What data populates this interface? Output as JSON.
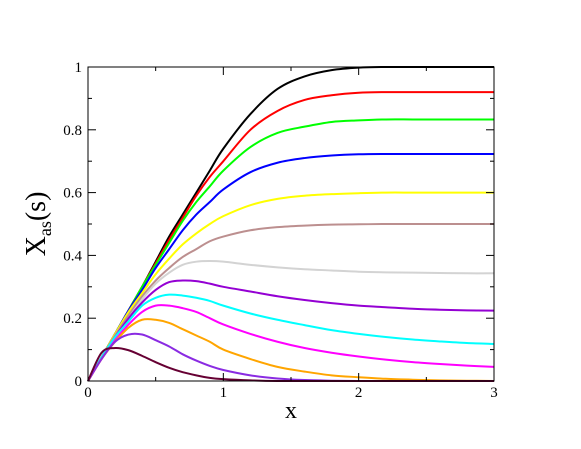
{
  "chart_data": {
    "type": "line",
    "title": "",
    "xlabel": "x",
    "ylabel_main": "X",
    "ylabel_sub": "as",
    "ylabel_tail": "(s)",
    "xlim": [
      0,
      3
    ],
    "ylim": [
      0,
      1
    ],
    "x_ticks": [
      0,
      1,
      2,
      3
    ],
    "x_tick_labels": [
      "0",
      "1",
      "2",
      "3"
    ],
    "y_ticks": [
      0,
      0.2,
      0.4,
      0.6,
      0.8,
      1
    ],
    "y_tick_labels": [
      "0",
      "0.2",
      "0.4",
      "0.6",
      "0.8",
      "1"
    ],
    "grid": false,
    "legend": "none",
    "x": [
      0,
      0.1,
      0.2,
      0.3,
      0.4,
      0.5,
      0.6,
      0.7,
      0.8,
      0.9,
      1.0,
      1.2,
      1.4,
      1.6,
      1.8,
      2.0,
      2.2,
      2.4,
      2.6,
      2.8,
      3.0
    ],
    "series": [
      {
        "color": "#000000",
        "values": [
          0,
          0.075,
          0.15,
          0.225,
          0.3,
          0.38,
          0.46,
          0.53,
          0.6,
          0.67,
          0.74,
          0.85,
          0.93,
          0.97,
          0.99,
          0.998,
          1.0,
          1.0,
          1.0,
          1.0,
          1.0
        ]
      },
      {
        "color": "#ff0000",
        "values": [
          0,
          0.075,
          0.15,
          0.225,
          0.3,
          0.375,
          0.45,
          0.52,
          0.59,
          0.65,
          0.7,
          0.8,
          0.86,
          0.895,
          0.91,
          0.918,
          0.92,
          0.92,
          0.92,
          0.92,
          0.92
        ]
      },
      {
        "color": "#00ff00",
        "values": [
          0,
          0.075,
          0.15,
          0.225,
          0.3,
          0.37,
          0.44,
          0.51,
          0.57,
          0.62,
          0.67,
          0.745,
          0.79,
          0.81,
          0.825,
          0.83,
          0.833,
          0.833,
          0.833,
          0.833,
          0.833
        ]
      },
      {
        "color": "#0000ff",
        "values": [
          0,
          0.075,
          0.15,
          0.225,
          0.29,
          0.36,
          0.42,
          0.48,
          0.53,
          0.57,
          0.61,
          0.665,
          0.695,
          0.71,
          0.718,
          0.722,
          0.723,
          0.723,
          0.723,
          0.723,
          0.723
        ]
      },
      {
        "color": "#ffff00",
        "values": [
          0,
          0.075,
          0.15,
          0.22,
          0.28,
          0.34,
          0.39,
          0.435,
          0.47,
          0.5,
          0.525,
          0.56,
          0.58,
          0.59,
          0.595,
          0.598,
          0.6,
          0.6,
          0.6,
          0.6,
          0.6
        ]
      },
      {
        "color": "#bc8f8f",
        "values": [
          0,
          0.075,
          0.145,
          0.21,
          0.27,
          0.32,
          0.36,
          0.395,
          0.42,
          0.445,
          0.46,
          0.48,
          0.49,
          0.495,
          0.498,
          0.499,
          0.5,
          0.5,
          0.5,
          0.5,
          0.5
        ]
      },
      {
        "color": "#d3d3d3",
        "values": [
          0,
          0.075,
          0.14,
          0.2,
          0.26,
          0.31,
          0.345,
          0.37,
          0.38,
          0.382,
          0.38,
          0.37,
          0.362,
          0.356,
          0.352,
          0.348,
          0.346,
          0.345,
          0.344,
          0.343,
          0.343
        ]
      },
      {
        "color": "#9400d3",
        "values": [
          0,
          0.075,
          0.14,
          0.2,
          0.25,
          0.29,
          0.315,
          0.32,
          0.318,
          0.31,
          0.3,
          0.285,
          0.27,
          0.258,
          0.248,
          0.24,
          0.235,
          0.23,
          0.227,
          0.225,
          0.224
        ]
      },
      {
        "color": "#00ffff",
        "values": [
          0,
          0.075,
          0.14,
          0.19,
          0.24,
          0.265,
          0.275,
          0.272,
          0.265,
          0.255,
          0.24,
          0.215,
          0.195,
          0.178,
          0.162,
          0.15,
          0.14,
          0.132,
          0.126,
          0.121,
          0.118
        ]
      },
      {
        "color": "#ff00ff",
        "values": [
          0,
          0.07,
          0.13,
          0.18,
          0.22,
          0.24,
          0.24,
          0.232,
          0.22,
          0.2,
          0.18,
          0.15,
          0.125,
          0.105,
          0.09,
          0.078,
          0.068,
          0.06,
          0.054,
          0.049,
          0.045
        ]
      },
      {
        "color": "#ffa500",
        "values": [
          0,
          0.07,
          0.125,
          0.17,
          0.195,
          0.195,
          0.185,
          0.165,
          0.145,
          0.125,
          0.1,
          0.07,
          0.045,
          0.03,
          0.018,
          0.012,
          0.007,
          0.004,
          0.002,
          0.001,
          0.0
        ]
      },
      {
        "color": "#8a2be2",
        "values": [
          0,
          0.07,
          0.125,
          0.148,
          0.148,
          0.13,
          0.11,
          0.085,
          0.065,
          0.048,
          0.035,
          0.018,
          0.008,
          0.003,
          0.001,
          0.0,
          0.0,
          0.0,
          0.0,
          0.0,
          0.0
        ]
      },
      {
        "color": "#660033",
        "values": [
          0,
          0.09,
          0.105,
          0.098,
          0.08,
          0.06,
          0.042,
          0.028,
          0.018,
          0.01,
          0.006,
          0.002,
          0.0,
          0.0,
          0.0,
          0.0,
          0.0,
          0.0,
          0.0,
          0.0,
          0.0
        ]
      }
    ]
  }
}
